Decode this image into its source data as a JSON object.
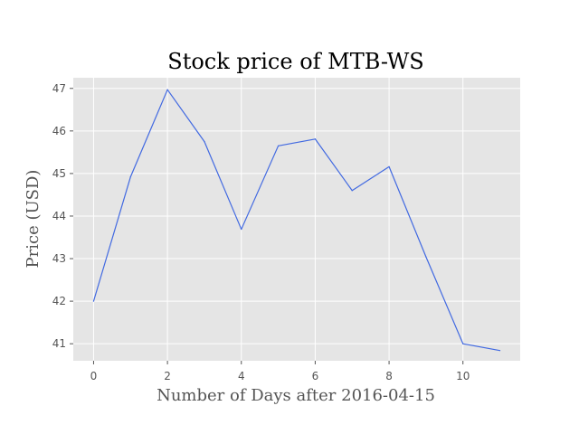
{
  "chart_data": {
    "type": "line",
    "title": "Stock price of MTB-WS",
    "xlabel": "Number of Days after 2016-04-15",
    "ylabel": "Price (USD)",
    "x": [
      0,
      1,
      2,
      3,
      4,
      5,
      6,
      7,
      8,
      9,
      10,
      11
    ],
    "series": [
      {
        "values": [
          42.0,
          44.92,
          46.97,
          45.75,
          43.69,
          45.65,
          45.81,
          44.6,
          45.16,
          43.04,
          41.0,
          40.84
        ],
        "color": "#4169e1"
      }
    ],
    "xlim": [
      -0.55,
      11.55
    ],
    "ylim": [
      40.6,
      47.25
    ],
    "xticks": [
      0,
      2,
      4,
      6,
      8,
      10
    ],
    "yticks": [
      41,
      42,
      43,
      44,
      45,
      46,
      47
    ],
    "grid": true,
    "plot_background": "#e5e5e5",
    "grid_color": "#ffffff"
  }
}
